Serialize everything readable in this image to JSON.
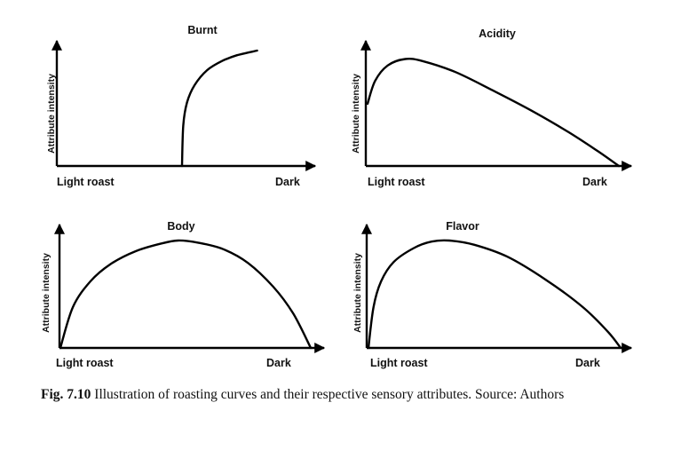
{
  "chart_data": [
    {
      "type": "line",
      "title": "Burnt",
      "ylabel": "Attribute intensity",
      "x_tick_labels": [
        "Light roast",
        "Dark"
      ],
      "xlim": [
        0,
        1
      ],
      "ylim": [
        0,
        1
      ],
      "series": [
        {
          "x": [
            0.5,
            0.505,
            0.52,
            0.55,
            0.6,
            0.66,
            0.72,
            0.8
          ],
          "y": [
            0.0,
            0.35,
            0.55,
            0.7,
            0.83,
            0.91,
            0.96,
            1.0
          ]
        }
      ]
    },
    {
      "type": "line",
      "title": "Acidity",
      "ylabel": "Attribute intensity",
      "x_tick_labels": [
        "Light roast",
        "Dark"
      ],
      "xlim": [
        0,
        1
      ],
      "ylim": [
        0,
        1
      ],
      "series": [
        {
          "x": [
            0.0,
            0.03,
            0.08,
            0.15,
            0.22,
            0.35,
            0.5,
            0.65,
            0.8,
            0.92,
            1.0
          ],
          "y": [
            0.57,
            0.78,
            0.92,
            0.98,
            0.96,
            0.86,
            0.69,
            0.51,
            0.31,
            0.13,
            0.0
          ]
        }
      ]
    },
    {
      "type": "line",
      "title": "Body",
      "ylabel": "Attribute intensity",
      "x_tick_labels": [
        "Light roast",
        "Dark"
      ],
      "xlim": [
        0,
        1
      ],
      "ylim": [
        0,
        1
      ],
      "series": [
        {
          "x": [
            0.0,
            0.05,
            0.12,
            0.2,
            0.3,
            0.4,
            0.47,
            0.55,
            0.65,
            0.75,
            0.85,
            0.93,
            1.0
          ],
          "y": [
            0.0,
            0.38,
            0.62,
            0.78,
            0.9,
            0.97,
            1.0,
            0.98,
            0.92,
            0.79,
            0.57,
            0.32,
            0.0
          ]
        }
      ]
    },
    {
      "type": "line",
      "title": "Flavor",
      "ylabel": "Attribute intensity",
      "x_tick_labels": [
        "Light roast",
        "Dark"
      ],
      "xlim": [
        0,
        1
      ],
      "ylim": [
        0,
        1
      ],
      "series": [
        {
          "x": [
            0.0,
            0.02,
            0.05,
            0.1,
            0.18,
            0.25,
            0.32,
            0.42,
            0.55,
            0.7,
            0.85,
            0.95,
            1.0
          ],
          "y": [
            0.0,
            0.38,
            0.62,
            0.8,
            0.93,
            0.99,
            1.0,
            0.96,
            0.85,
            0.64,
            0.38,
            0.15,
            0.0
          ]
        }
      ]
    }
  ],
  "caption": {
    "label": "Fig. 7.10",
    "text": "Illustration of roasting curves and their respective sensory attributes. Source: Authors"
  }
}
